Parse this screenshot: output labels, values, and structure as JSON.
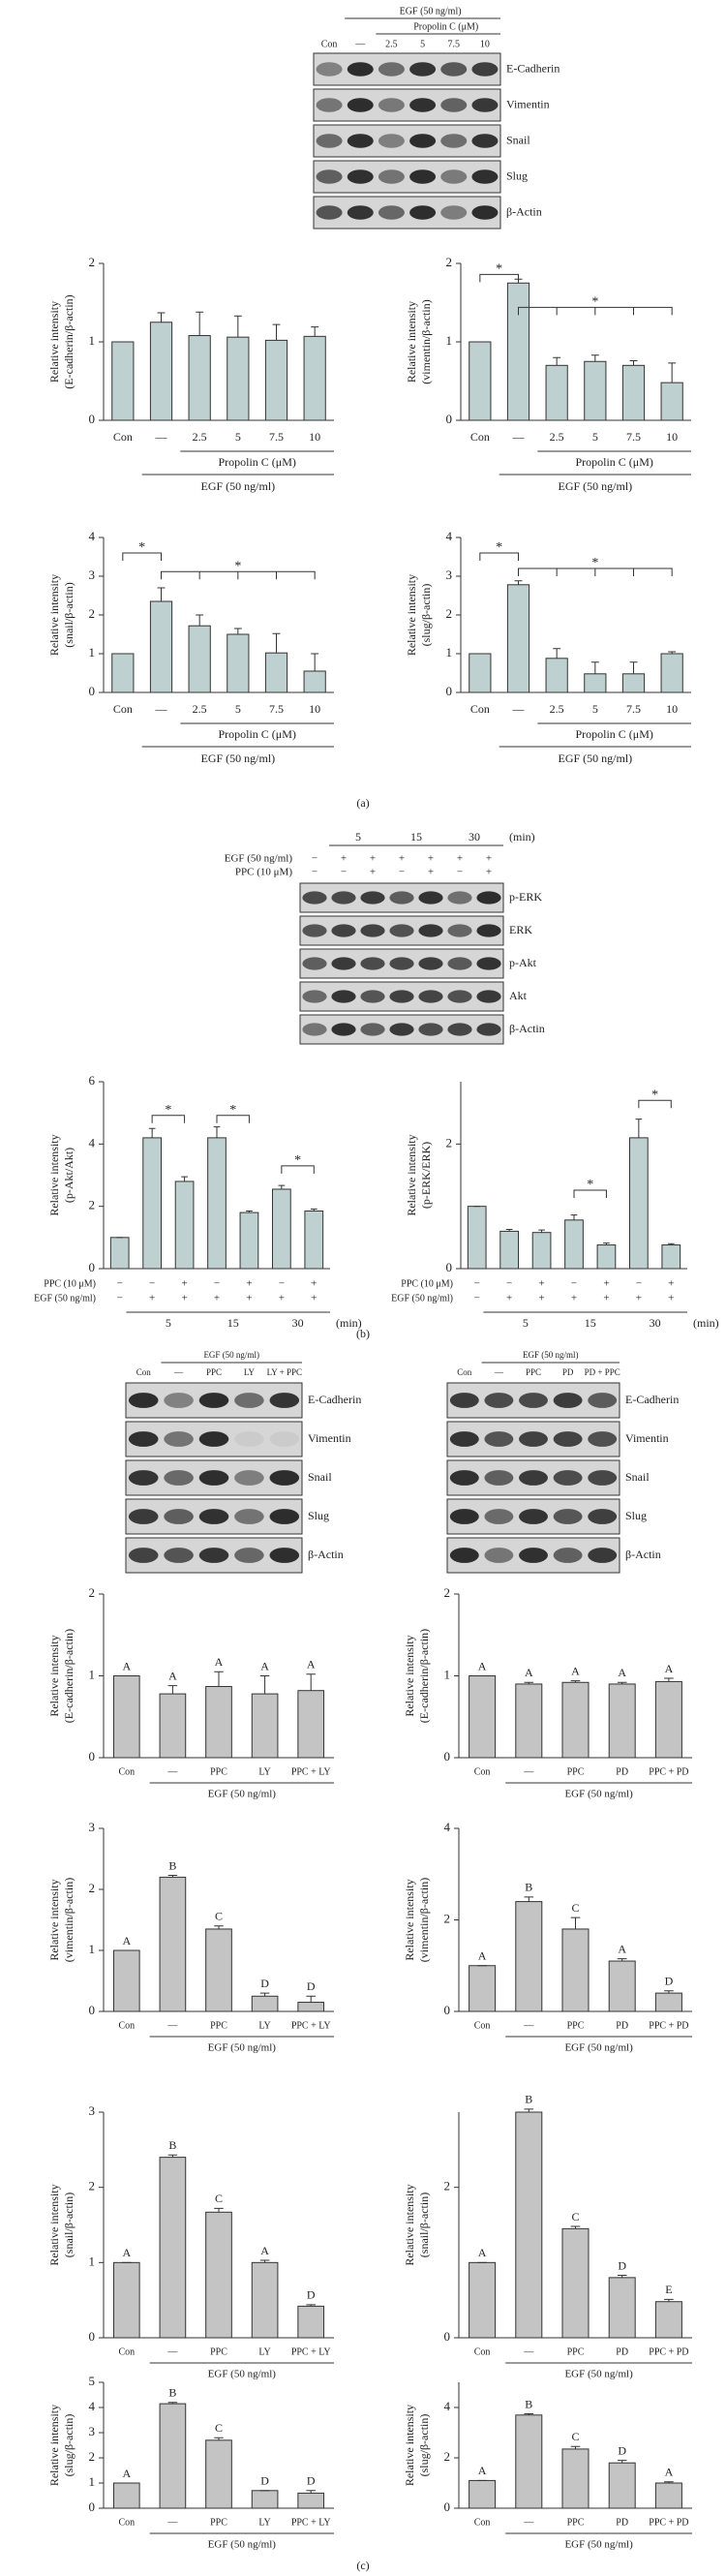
{
  "panel_labels": [
    "(a)",
    "(b)",
    "(c)"
  ],
  "blots": [
    {
      "header": "EGF (50 ng/ml)",
      "subheader": "Propolin C (μM)",
      "lanes": [
        "Con",
        "—",
        "2.5",
        "5",
        "7.5",
        "10"
      ],
      "rows": [
        "E-Cadherin",
        "Vimentin",
        "Snail",
        "Slug",
        "β-Actin"
      ]
    },
    {
      "times": [
        "5",
        "15",
        "30"
      ],
      "time_unit": "(min)",
      "header_rows": [
        {
          "label": "EGF (50 ng/ml)",
          "signs": [
            "−",
            "+",
            "+",
            "+",
            "+",
            "+",
            "+"
          ]
        },
        {
          "label": "PPC (10 μM)",
          "signs": [
            "−",
            "−",
            "+",
            "−",
            "+",
            "−",
            "+"
          ]
        }
      ],
      "rows": [
        "p-ERK",
        "ERK",
        "p-Akt",
        "Akt",
        "β-Actin"
      ]
    },
    {
      "header": "EGF (50 ng/ml)",
      "lanes": [
        "Con",
        "—",
        "PPC",
        "LY",
        "LY + PPC"
      ],
      "rows": [
        "E-Cadherin",
        "Vimentin",
        "Snail",
        "Slug",
        "β-Actin"
      ]
    },
    {
      "header": "EGF (50 ng/ml)",
      "lanes": [
        "Con",
        "—",
        "PPC",
        "PD",
        "PD + PPC"
      ],
      "rows": [
        "E-Cadherin",
        "Vimentin",
        "Snail",
        "Slug",
        "β-Actin"
      ]
    }
  ],
  "chart_data": [
    {
      "type": "bar",
      "ylabel": [
        "Relative intensity",
        "(E-cadherin/β-actin)"
      ],
      "categories": [
        "Con",
        "—",
        "2.5",
        "5",
        "7.5",
        "10"
      ],
      "values": [
        1.0,
        1.25,
        1.08,
        1.06,
        1.02,
        1.07
      ],
      "errors": [
        0,
        0.12,
        0.3,
        0.27,
        0.2,
        0.12
      ],
      "ylim": [
        0,
        2
      ],
      "yticks": [
        0,
        1,
        2
      ],
      "group_label": "Propolin C (μM)",
      "egf_label": "EGF (50 ng/ml)",
      "color": "#bfd0d0"
    },
    {
      "type": "bar",
      "ylabel": [
        "Relative intensity",
        "(vimentin/β-actin)"
      ],
      "categories": [
        "Con",
        "—",
        "2.5",
        "5",
        "7.5",
        "10"
      ],
      "values": [
        1.0,
        1.75,
        0.7,
        0.75,
        0.7,
        0.48
      ],
      "errors": [
        0,
        0.05,
        0.1,
        0.08,
        0.06,
        0.25
      ],
      "ylim": [
        0,
        2
      ],
      "yticks": [
        0,
        1,
        2
      ],
      "stars": [
        "*",
        "*"
      ],
      "group_label": "Propolin C (μM)",
      "egf_label": "EGF (50 ng/ml)",
      "color": "#bfd0d0"
    },
    {
      "type": "bar",
      "ylabel": [
        "Relative intensity",
        "(snail/β-actin)"
      ],
      "categories": [
        "Con",
        "—",
        "2.5",
        "5",
        "7.5",
        "10"
      ],
      "values": [
        1.0,
        2.35,
        1.72,
        1.5,
        1.02,
        0.55
      ],
      "errors": [
        0,
        0.35,
        0.28,
        0.15,
        0.5,
        0.45
      ],
      "ylim": [
        0,
        4
      ],
      "yticks": [
        0,
        1,
        2,
        3,
        4
      ],
      "stars": [
        "*",
        "*"
      ],
      "group_label": "Propolin C (μM)",
      "egf_label": "EGF (50 ng/ml)",
      "color": "#bfd0d0"
    },
    {
      "type": "bar",
      "ylabel": [
        "Relative intensity",
        "(slug/β-actin)"
      ],
      "categories": [
        "Con",
        "—",
        "2.5",
        "5",
        "7.5",
        "10"
      ],
      "values": [
        1.0,
        2.78,
        0.88,
        0.48,
        0.48,
        1.0
      ],
      "errors": [
        0,
        0.1,
        0.25,
        0.3,
        0.3,
        0.05
      ],
      "ylim": [
        0,
        4
      ],
      "yticks": [
        0,
        1,
        2,
        3,
        4
      ],
      "stars": [
        "*",
        "*"
      ],
      "group_label": "Propolin C (μM)",
      "egf_label": "EGF (50 ng/ml)",
      "color": "#bfd0d0"
    },
    {
      "type": "bar",
      "ylabel": [
        "Relative intensity",
        "(p-Akt/Akt)"
      ],
      "values": [
        1.0,
        4.2,
        2.8,
        4.2,
        1.8,
        2.55,
        1.85
      ],
      "errors": [
        0,
        0.3,
        0.15,
        0.35,
        0.05,
        0.12,
        0.06
      ],
      "ylim": [
        0,
        6
      ],
      "yticks": [
        0,
        2,
        4,
        6
      ],
      "stars": [
        "*",
        "*",
        "*"
      ],
      "rows": [
        {
          "label": "PPC (10 μM)",
          "signs": [
            "−",
            "−",
            "+",
            "−",
            "+",
            "−",
            "+"
          ]
        },
        {
          "label": "EGF (50 ng/ml)",
          "signs": [
            "−",
            "+",
            "+",
            "+",
            "+",
            "+",
            "+"
          ]
        }
      ],
      "times": [
        "5",
        "15",
        "30"
      ],
      "time_unit": "(min)",
      "color": "#bfd0d0"
    },
    {
      "type": "bar",
      "ylabel": [
        "Relative intensity",
        "(p-ERK/ERK)"
      ],
      "values": [
        1.0,
        0.6,
        0.58,
        0.78,
        0.38,
        2.1,
        0.38
      ],
      "errors": [
        0,
        0.03,
        0.04,
        0.08,
        0.03,
        0.3,
        0.02
      ],
      "ylim": [
        0,
        3
      ],
      "yticks": [
        0,
        2
      ],
      "stars": [
        "*",
        "*"
      ],
      "rows": [
        {
          "label": "PPC (10 μM)",
          "signs": [
            "−",
            "−",
            "+",
            "−",
            "+",
            "−",
            "+"
          ]
        },
        {
          "label": "EGF (50 ng/ml)",
          "signs": [
            "−",
            "+",
            "+",
            "+",
            "+",
            "+",
            "+"
          ]
        }
      ],
      "times": [
        "5",
        "15",
        "30"
      ],
      "time_unit": "(min)",
      "color": "#bfd0d0"
    },
    {
      "type": "bar",
      "ylabel": [
        "Relative intensity",
        "(E-cadherin/β-actin)"
      ],
      "categories": [
        "Con",
        "—",
        "PPC",
        "LY",
        "PPC + LY"
      ],
      "values": [
        1.0,
        0.78,
        0.87,
        0.78,
        0.82
      ],
      "errors": [
        0,
        0.1,
        0.18,
        0.22,
        0.2
      ],
      "bar_labels": [
        "A",
        "A",
        "A",
        "A",
        "A"
      ],
      "ylim": [
        0,
        2
      ],
      "yticks": [
        0,
        1,
        2
      ],
      "egf_label": "EGF (50 ng/ml)",
      "color": "#c4c4c4"
    },
    {
      "type": "bar",
      "ylabel": [
        "Relative intensity",
        "(E-cadherin/β-actin)"
      ],
      "categories": [
        "Con",
        "—",
        "PPC",
        "PD",
        "PPC + PD"
      ],
      "values": [
        1.0,
        0.9,
        0.92,
        0.9,
        0.93
      ],
      "errors": [
        0,
        0.02,
        0.02,
        0.02,
        0.04
      ],
      "bar_labels": [
        "A",
        "A",
        "A",
        "A",
        "A"
      ],
      "ylim": [
        0,
        2
      ],
      "yticks": [
        0,
        1,
        2
      ],
      "egf_label": "EGF (50 ng/ml)",
      "color": "#c4c4c4"
    },
    {
      "type": "bar",
      "ylabel": [
        "Relative intensity",
        "(vimentin/β-actin)"
      ],
      "categories": [
        "Con",
        "—",
        "PPC",
        "LY",
        "PPC + LY"
      ],
      "values": [
        1.0,
        2.2,
        1.35,
        0.25,
        0.15
      ],
      "errors": [
        0,
        0.03,
        0.05,
        0.05,
        0.1
      ],
      "bar_labels": [
        "A",
        "B",
        "C",
        "D",
        "D"
      ],
      "ylim": [
        0,
        3
      ],
      "yticks": [
        0,
        1,
        2,
        3
      ],
      "egf_label": "EGF (50 ng/ml)",
      "color": "#c4c4c4"
    },
    {
      "type": "bar",
      "ylabel": [
        "Relative intensity",
        "(vimentin/β-actin)"
      ],
      "categories": [
        "Con",
        "—",
        "PPC",
        "PD",
        "PPC + PD"
      ],
      "values": [
        1.0,
        2.4,
        1.8,
        1.1,
        0.4
      ],
      "errors": [
        0,
        0.1,
        0.25,
        0.05,
        0.05
      ],
      "bar_labels": [
        "A",
        "B",
        "C",
        "A",
        "D"
      ],
      "ylim": [
        0,
        4
      ],
      "yticks": [
        0,
        2,
        4
      ],
      "egf_label": "EGF (50 ng/ml)",
      "color": "#c4c4c4"
    },
    {
      "type": "bar",
      "ylabel": [
        "Relative intensity",
        "(snail/β-actin)"
      ],
      "categories": [
        "Con",
        "—",
        "PPC",
        "LY",
        "PPC + LY"
      ],
      "values": [
        1.0,
        2.4,
        1.67,
        1.0,
        0.42
      ],
      "errors": [
        0,
        0.03,
        0.05,
        0.03,
        0.02
      ],
      "bar_labels": [
        "A",
        "B",
        "C",
        "A",
        "D"
      ],
      "ylim": [
        0,
        3
      ],
      "yticks": [
        0,
        1,
        2,
        3
      ],
      "egf_label": "EGF (50 ng/ml)",
      "color": "#c4c4c4"
    },
    {
      "type": "bar",
      "ylabel": [
        "Relative intensity",
        "(snail/β-actin)"
      ],
      "categories": [
        "Con",
        "—",
        "PPC",
        "PD",
        "PPC + PD"
      ],
      "values": [
        1.0,
        3.0,
        1.45,
        0.8,
        0.48
      ],
      "errors": [
        0,
        0.04,
        0.03,
        0.03,
        0.03
      ],
      "bar_labels": [
        "A",
        "B",
        "C",
        "D",
        "E"
      ],
      "ylim": [
        0,
        3
      ],
      "yticks": [
        0,
        2
      ],
      "egf_label": "EGF (50 ng/ml)",
      "color": "#c4c4c4"
    },
    {
      "type": "bar",
      "ylabel": [
        "Relative intensity",
        "(slug/β-actin)"
      ],
      "categories": [
        "Con",
        "—",
        "PPC",
        "LY",
        "PPC + LY"
      ],
      "values": [
        1.0,
        4.15,
        2.7,
        0.7,
        0.6
      ],
      "errors": [
        0,
        0.05,
        0.1,
        0,
        0.1
      ],
      "bar_labels": [
        "A",
        "B",
        "C",
        "D",
        "D"
      ],
      "ylim": [
        0,
        5
      ],
      "yticks": [
        0,
        1,
        2,
        3,
        4,
        5
      ],
      "egf_label": "EGF (50 ng/ml)",
      "color": "#c4c4c4"
    },
    {
      "type": "bar",
      "ylabel": [
        "Relative intensity",
        "(slug/β-actin)"
      ],
      "categories": [
        "Con",
        "—",
        "PPC",
        "PD",
        "PPC + PD"
      ],
      "values": [
        1.1,
        3.7,
        2.35,
        1.8,
        1.0
      ],
      "errors": [
        0,
        0.05,
        0.1,
        0.1,
        0.05
      ],
      "bar_labels": [
        "A",
        "B",
        "C",
        "D",
        "A"
      ],
      "ylim": [
        0,
        5
      ],
      "yticks": [
        0,
        2,
        4
      ],
      "egf_label": "EGF (50 ng/ml)",
      "color": "#c4c4c4"
    }
  ]
}
